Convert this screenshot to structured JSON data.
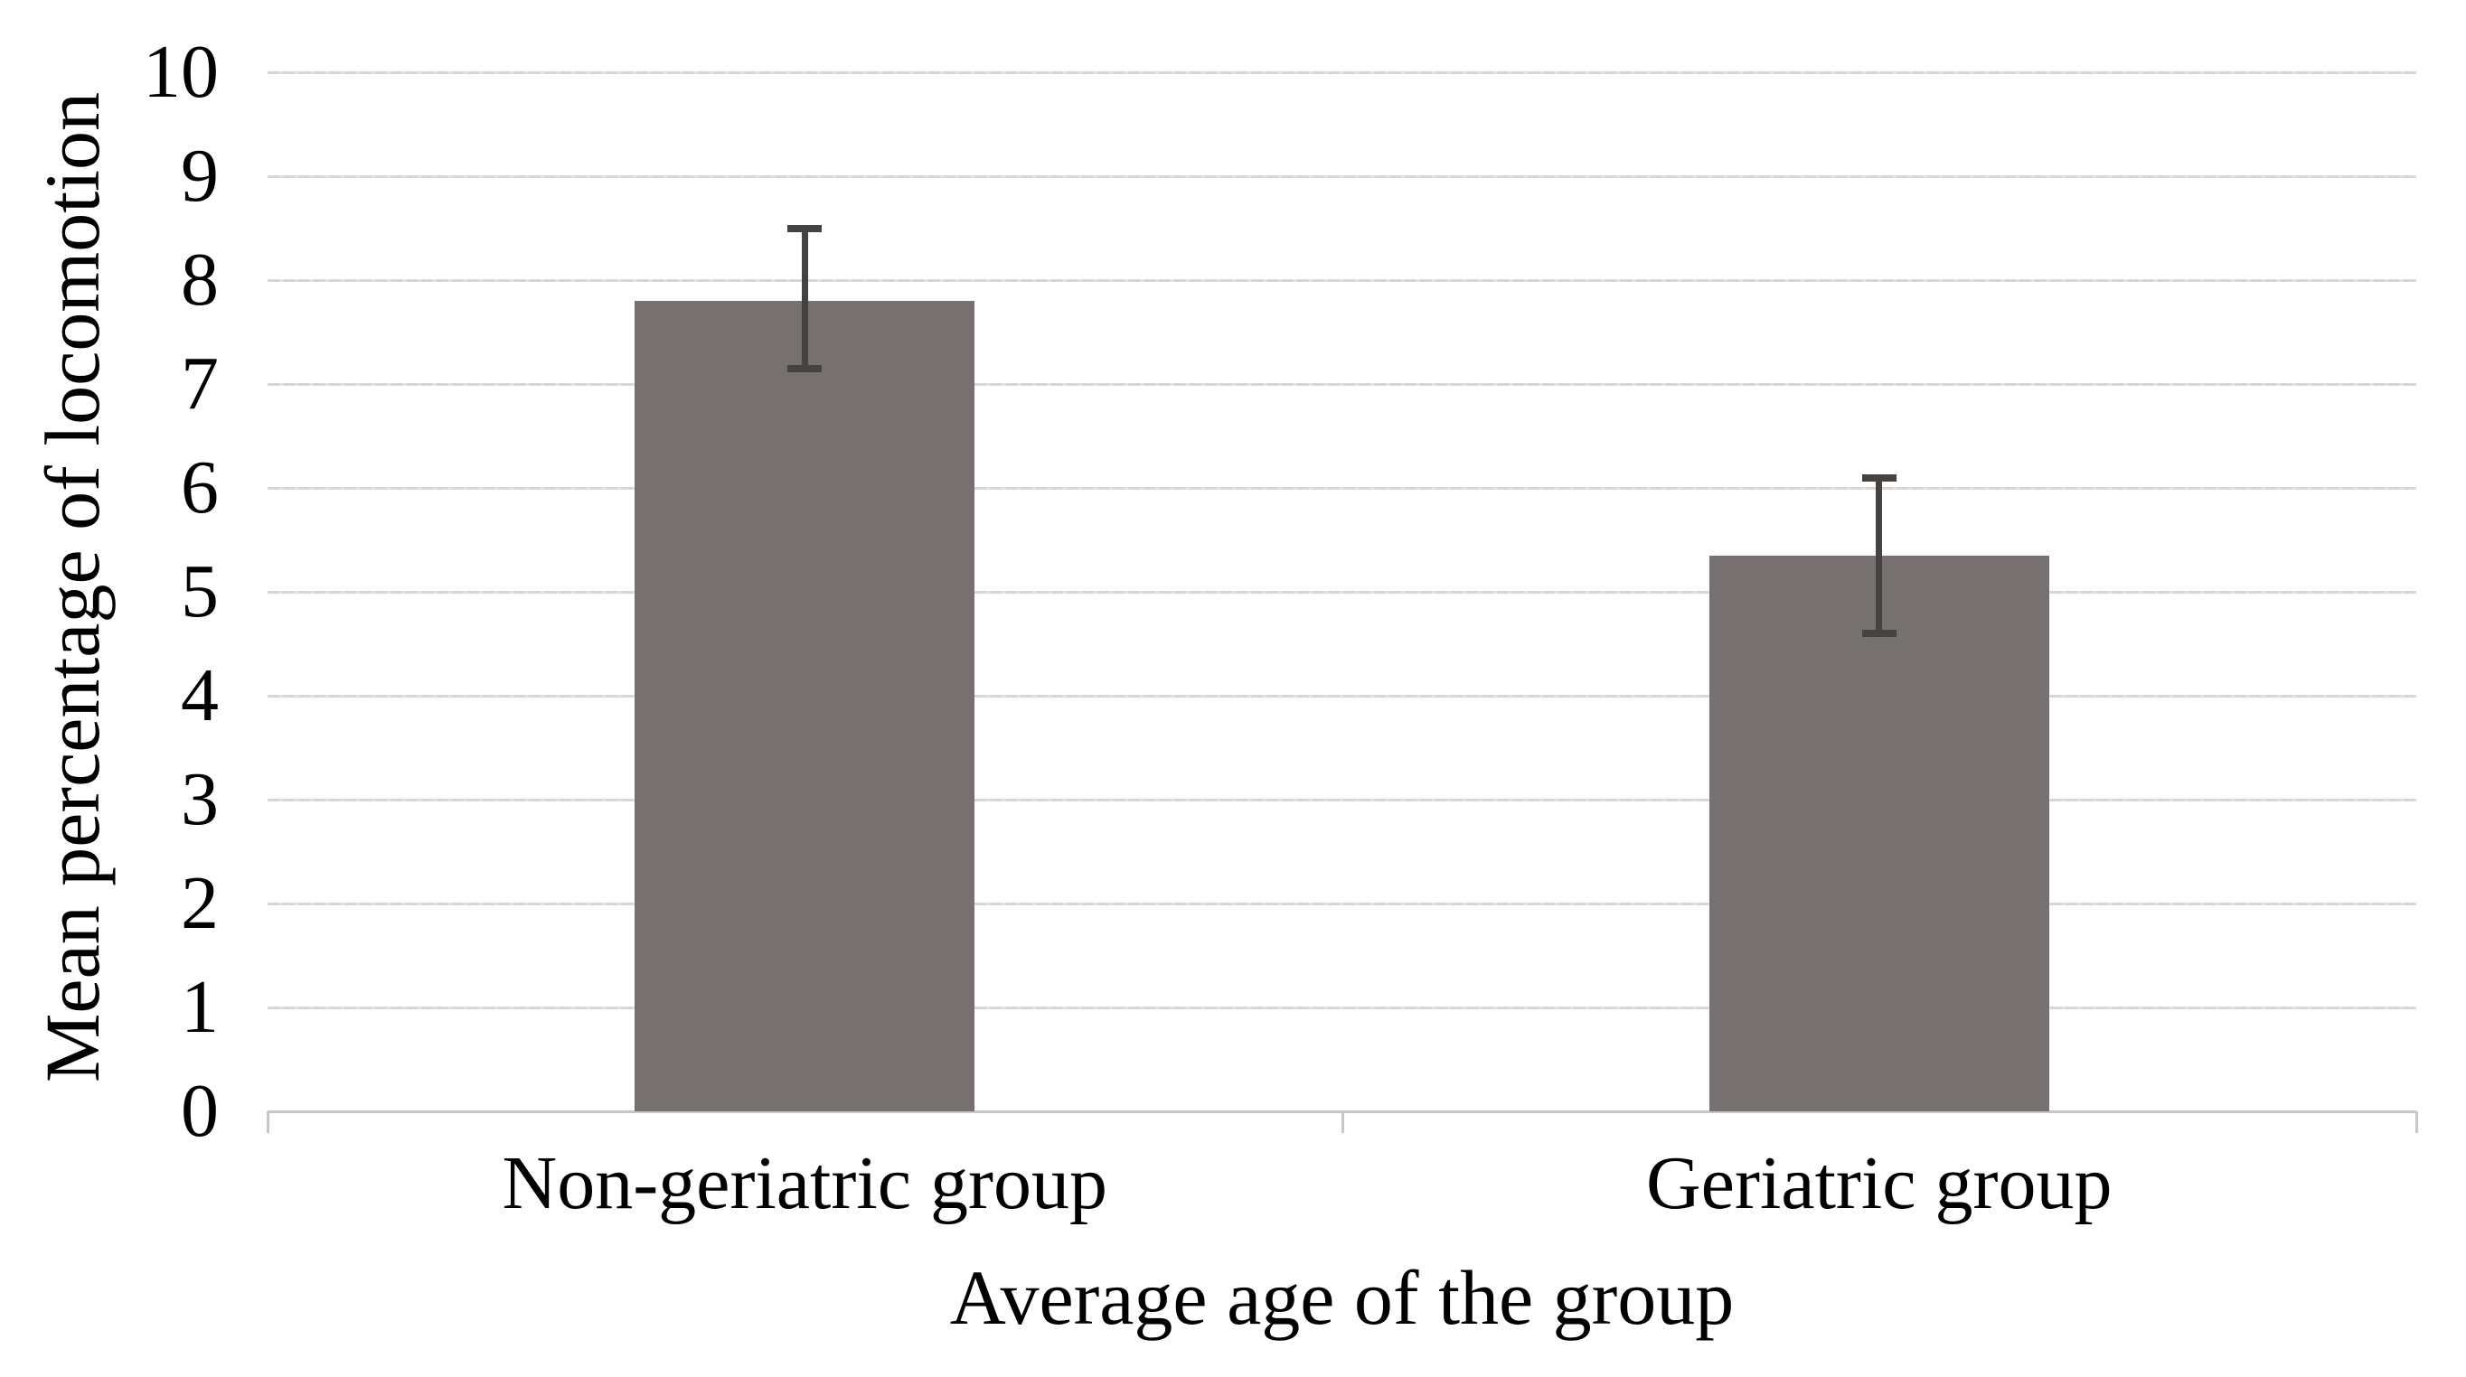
{
  "chart_data": {
    "type": "bar",
    "title": "",
    "categories": [
      "Non-geriatric group",
      "Geriatric group"
    ],
    "values": [
      7.8,
      5.35
    ],
    "whisker_high": [
      8.5,
      6.1
    ],
    "whisker_low": [
      7.15,
      4.6
    ],
    "xlabel": "Average age of the group",
    "ylabel": "Mean percentage of locomotion",
    "ylim": [
      0,
      10
    ],
    "ytick_step": 1,
    "ytick_labels": [
      "0",
      "1",
      "2",
      "3",
      "4",
      "5",
      "6",
      "7",
      "8",
      "9",
      "10"
    ],
    "grid": true,
    "legend": "none",
    "colors": {
      "bar_fill": "#767170",
      "error_bar": "#454240",
      "gridline": "#d8d6d4",
      "gridline_light": "#e4e2e0",
      "axis_line": "#c9c7c5",
      "text": "#000000",
      "background": "#ffffff"
    }
  }
}
